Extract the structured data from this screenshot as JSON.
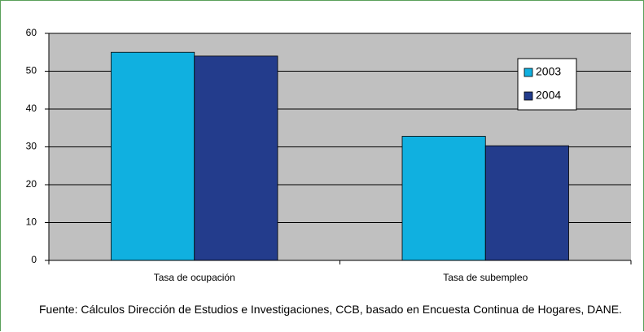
{
  "chart_data": {
    "type": "bar",
    "categories": [
      "Tasa de ocupación",
      "Tasa de subempleo"
    ],
    "series": [
      {
        "name": "2003",
        "color": "#10b0e0",
        "values": [
          55,
          32.8
        ]
      },
      {
        "name": "2004",
        "color": "#233c8c",
        "values": [
          54,
          30.3
        ]
      }
    ],
    "ylim": [
      0,
      60
    ],
    "yticks": [
      0,
      10,
      20,
      30,
      40,
      50,
      60
    ],
    "grid": true,
    "legend": "right",
    "note": "Fuente: Cálculos Dirección de Estudios e Investigaciones, CCB, basado en Encuesta Continua de Hogares, DANE."
  }
}
